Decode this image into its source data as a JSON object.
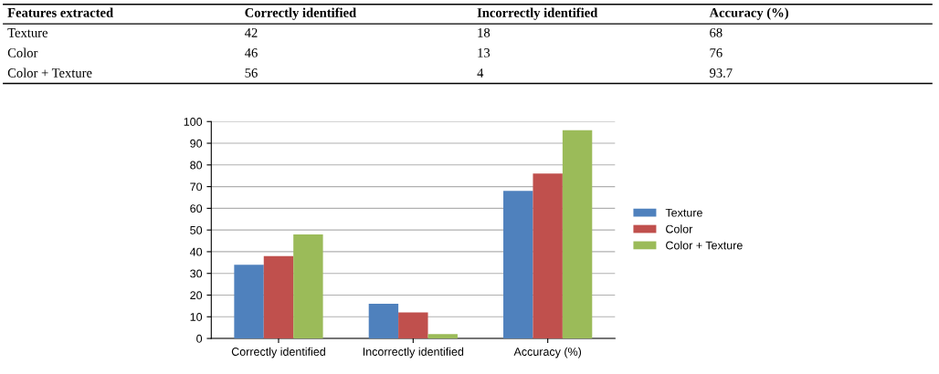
{
  "chart_data": [
    {
      "type": "other",
      "categories": [
        "Features extracted",
        "Correctly identified",
        "Incorrectly identified",
        "Accuracy (%)"
      ],
      "y_categories": [
        "Texture",
        "Color",
        "Color + Texture"
      ],
      "cell_labels": [
        [
          "42",
          "18",
          "68"
        ],
        [
          "46",
          "13",
          "76"
        ],
        [
          "56",
          "4",
          "93.7"
        ]
      ]
    },
    {
      "type": "bar",
      "categories": [
        "Correctly identified",
        "Incorrectly identified",
        "Accuracy (%)"
      ],
      "series": [
        {
          "name": "Texture",
          "color": "#4f81bd",
          "values": [
            34,
            16,
            68
          ]
        },
        {
          "name": "Color",
          "color": "#c0504d",
          "values": [
            38,
            12,
            76
          ]
        },
        {
          "name": "Color + Texture",
          "color": "#9bbb59",
          "values": [
            48,
            2,
            96
          ]
        }
      ],
      "ylim": [
        0,
        100
      ],
      "yticks": [
        0,
        10,
        20,
        30,
        40,
        50,
        60,
        70,
        80,
        90,
        100
      ],
      "grid": "y",
      "legend": "right"
    }
  ]
}
